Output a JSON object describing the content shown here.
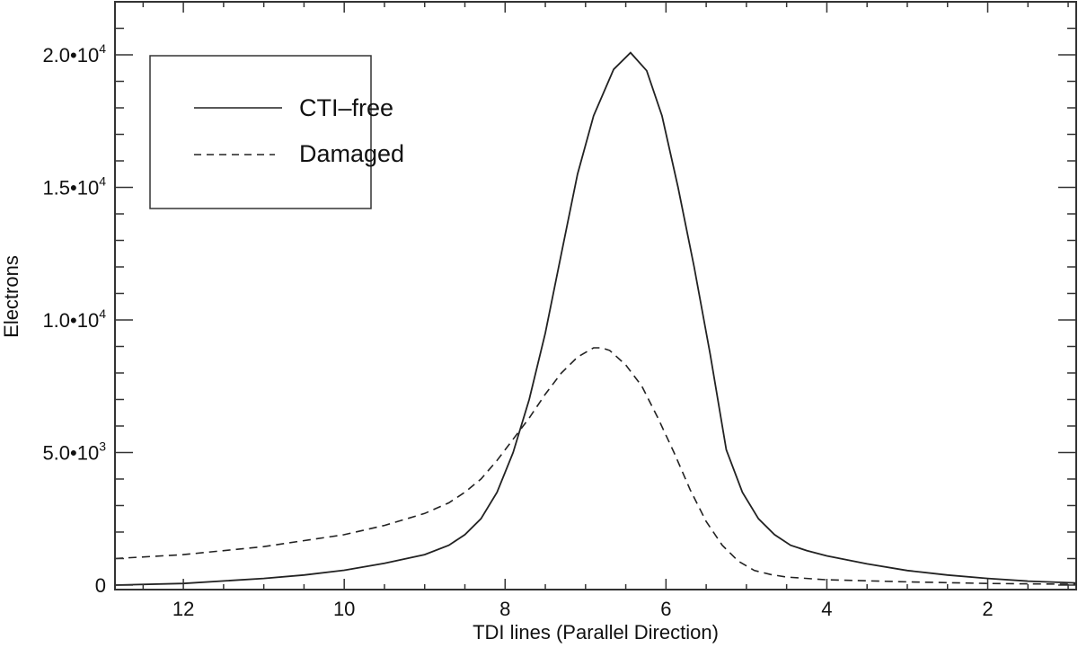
{
  "chart_data": {
    "type": "line",
    "title": "",
    "xlabel": "TDI lines (Parallel Direction)",
    "ylabel": "Electrons",
    "xlim": [
      12.85,
      0.9
    ],
    "x_reversed": true,
    "ylim": [
      -170,
      22000
    ],
    "grid": false,
    "legend_position": "top-left",
    "x_ticks": [
      12,
      10,
      8,
      6,
      4,
      2
    ],
    "x_tick_labels": [
      "12",
      "10",
      "8",
      "6",
      "4",
      "2"
    ],
    "y_ticks": [
      0,
      5000,
      10000,
      15000,
      20000
    ],
    "y_tick_labels": [
      {
        "mantissa": "0",
        "exp": ""
      },
      {
        "mantissa": "5.0•10",
        "exp": "3"
      },
      {
        "mantissa": "1.0•10",
        "exp": "4"
      },
      {
        "mantissa": "1.5•10",
        "exp": "4"
      },
      {
        "mantissa": "2.0•10",
        "exp": "4"
      }
    ],
    "series": [
      {
        "name": "CTI–free",
        "style": "solid",
        "color": "#222222",
        "x": [
          12.85,
          12,
          11,
          10.5,
          10,
          9.5,
          9,
          8.7,
          8.5,
          8.3,
          8.1,
          7.9,
          7.7,
          7.5,
          7.3,
          7.1,
          6.9,
          6.65,
          6.44,
          6.24,
          6.05,
          5.85,
          5.65,
          5.45,
          5.25,
          5.05,
          4.85,
          4.65,
          4.45,
          4.25,
          4.0,
          3.5,
          3.0,
          2.5,
          2.0,
          1.5,
          0.9
        ],
        "y": [
          0,
          60,
          250,
          380,
          560,
          820,
          1150,
          1500,
          1900,
          2500,
          3500,
          5000,
          7000,
          9500,
          12500,
          15500,
          17700,
          19450,
          20080,
          19400,
          17700,
          15000,
          12000,
          8700,
          5100,
          3500,
          2500,
          1900,
          1500,
          1300,
          1100,
          800,
          550,
          380,
          250,
          150,
          80
        ]
      },
      {
        "name": "Damaged",
        "style": "dashed",
        "color": "#222222",
        "x": [
          12.85,
          12,
          11,
          10,
          9.5,
          9,
          8.7,
          8.5,
          8.3,
          8.1,
          7.9,
          7.7,
          7.5,
          7.3,
          7.1,
          6.9,
          6.8,
          6.7,
          6.5,
          6.3,
          6.1,
          5.9,
          5.7,
          5.5,
          5.3,
          5.1,
          4.9,
          4.7,
          4.5,
          4.0,
          3.0,
          2.0,
          0.9
        ],
        "y": [
          1000,
          1150,
          1450,
          1900,
          2250,
          2700,
          3100,
          3500,
          4000,
          4700,
          5500,
          6300,
          7200,
          8000,
          8600,
          8950,
          8950,
          8850,
          8300,
          7500,
          6300,
          5000,
          3600,
          2400,
          1500,
          900,
          550,
          400,
          300,
          200,
          120,
          60,
          30
        ]
      }
    ]
  }
}
